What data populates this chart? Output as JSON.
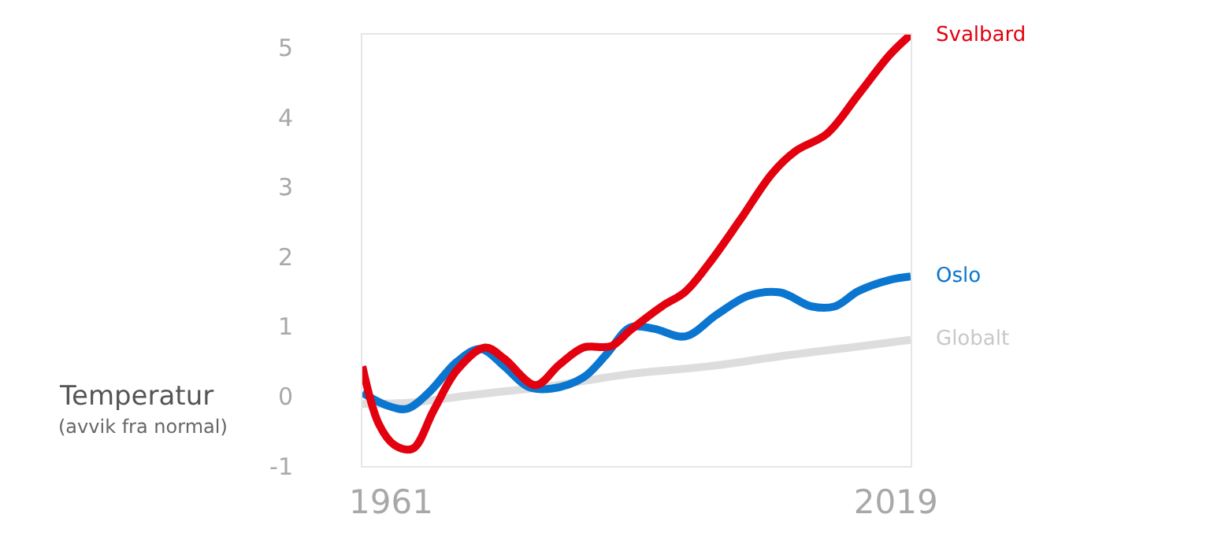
{
  "chart_data": {
    "type": "line",
    "ylabel": "Temperatur",
    "annotations": [
      "(avvik fra normal)"
    ],
    "xlim": [
      1957.7,
      2020.7
    ],
    "xticks": [
      1961,
      2019
    ],
    "ylim": [
      -1,
      5.19
    ],
    "yticks": [
      -1,
      0,
      1,
      2,
      3,
      4,
      5
    ],
    "legend": false,
    "marker": "none",
    "line_style": "solid",
    "series": [
      {
        "name": "Globalt",
        "color": "#dddddd",
        "x": [
          1957.7,
          1963.2,
          1970.4,
          1979.4,
          1988.5,
          1997.5,
          2006.6,
          2013.8,
          2020.7
        ],
        "values": [
          -0.11,
          -0.09,
          0.02,
          0.15,
          0.32,
          0.43,
          0.59,
          0.7,
          0.81
        ]
      },
      {
        "name": "Oslo",
        "color": "#0a76d0",
        "x": [
          1957.7,
          1960.5,
          1962.8,
          1965.3,
          1968.6,
          1971.3,
          1974,
          1976.7,
          1979.4,
          1983.1,
          1985.8,
          1988.5,
          1991.2,
          1994.8,
          1998.4,
          2002,
          2005.7,
          2009.3,
          2012,
          2014.7,
          2018.3,
          2020.7
        ],
        "values": [
          0.05,
          -0.13,
          -0.18,
          0.05,
          0.5,
          0.68,
          0.43,
          0.14,
          0.11,
          0.27,
          0.61,
          0.99,
          0.97,
          0.86,
          1.17,
          1.44,
          1.49,
          1.29,
          1.29,
          1.51,
          1.67,
          1.72
        ]
      },
      {
        "name": "Svalbard",
        "color": "#e3000f",
        "x": [
          1957.7,
          1959.6,
          1961.4,
          1963.5,
          1965.9,
          1968.6,
          1971.8,
          1974,
          1977.6,
          1980.3,
          1983.1,
          1986.3,
          1988.5,
          1992.1,
          1994.8,
          1997.5,
          2001.1,
          2004.8,
          2007.5,
          2011.1,
          2014.7,
          2018.3,
          2020.7
        ],
        "values": [
          0.43,
          -0.4,
          -0.7,
          -0.75,
          -0.2,
          0.38,
          0.7,
          0.54,
          0.16,
          0.45,
          0.7,
          0.72,
          0.95,
          1.29,
          1.5,
          1.9,
          2.53,
          3.2,
          3.52,
          3.77,
          4.33,
          4.9,
          5.19
        ]
      }
    ]
  }
}
